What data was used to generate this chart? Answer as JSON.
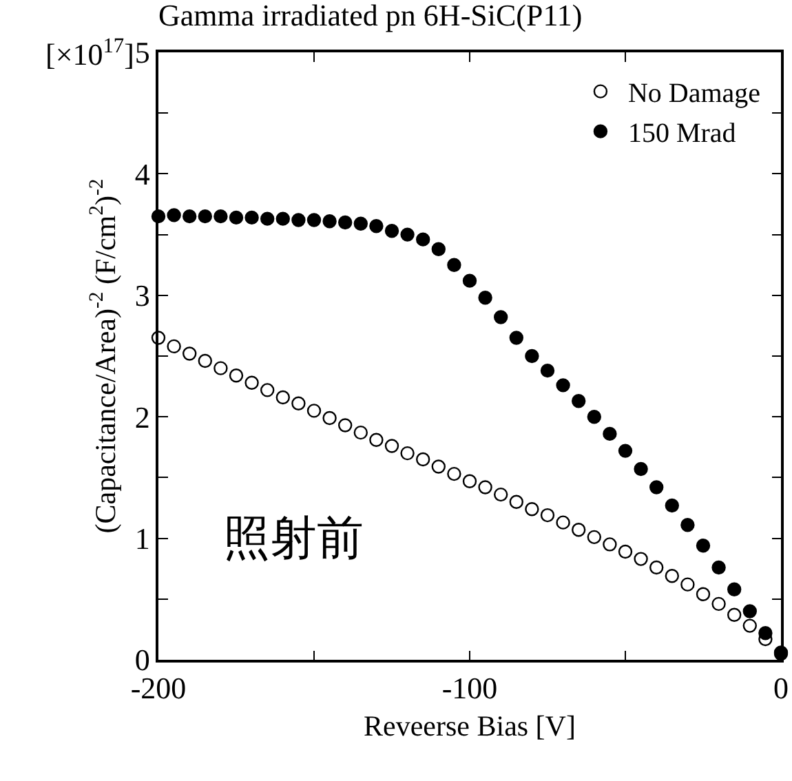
{
  "chart_data": {
    "type": "scatter",
    "title": "Gamma irradiated pn 6H-SiC(P11)",
    "xlabel": "Reveerse Bias [V]",
    "ylabel": "(Capacitance/Area)$^{-2}$ (F/cm$^{2}$)$^{-2}$",
    "annotations": [
      "[×10$^{17}$]",
      "照射前"
    ],
    "x": [
      -200,
      -195,
      -190,
      -185,
      -180,
      -175,
      -170,
      -165,
      -160,
      -155,
      -150,
      -145,
      -140,
      -135,
      -130,
      -125,
      -120,
      -115,
      -110,
      -105,
      -100,
      -95,
      -90,
      -85,
      -80,
      -75,
      -70,
      -65,
      -60,
      -55,
      -50,
      -45,
      -40,
      -35,
      -30,
      -25,
      -20,
      -15,
      -10,
      -5,
      0
    ],
    "series": [
      {
        "name": "No Damage",
        "color": "#000000",
        "values": [
          2.65,
          2.58,
          2.52,
          2.46,
          2.4,
          2.34,
          2.28,
          2.22,
          2.16,
          2.11,
          2.05,
          1.99,
          1.93,
          1.87,
          1.81,
          1.76,
          1.7,
          1.65,
          1.59,
          1.53,
          1.47,
          1.42,
          1.36,
          1.3,
          1.24,
          1.19,
          1.13,
          1.07,
          1.01,
          0.95,
          0.89,
          0.83,
          0.76,
          0.69,
          0.62,
          0.54,
          0.46,
          0.37,
          0.28,
          0.17,
          0.05
        ]
      },
      {
        "name": "150 Mrad",
        "color": "#000000",
        "values": [
          3.65,
          3.66,
          3.65,
          3.65,
          3.65,
          3.64,
          3.64,
          3.63,
          3.63,
          3.62,
          3.62,
          3.61,
          3.6,
          3.59,
          3.57,
          3.53,
          3.5,
          3.46,
          3.38,
          3.25,
          3.12,
          2.98,
          2.82,
          2.65,
          2.5,
          2.38,
          2.26,
          2.13,
          2.0,
          1.86,
          1.72,
          1.57,
          1.42,
          1.27,
          1.11,
          0.94,
          0.76,
          0.58,
          0.4,
          0.22,
          0.06
        ]
      }
    ],
    "xlim": [
      -200,
      0
    ],
    "xticks": [
      -200,
      {
        "value": -150,
        "label": null
      },
      -100,
      {
        "value": -50,
        "label": null
      },
      0
    ],
    "ylim": [
      0,
      5
    ],
    "yticks": [
      0,
      {
        "value": 0.5,
        "label": null
      },
      1,
      {
        "value": 1.5,
        "label": null
      },
      2,
      {
        "value": 2.5,
        "label": null
      },
      3,
      {
        "value": 3.5,
        "label": null
      },
      4,
      {
        "value": 4.5,
        "label": null
      },
      5
    ],
    "grid": false,
    "legend": "top right",
    "marker": "circle",
    "line_style": "none"
  }
}
